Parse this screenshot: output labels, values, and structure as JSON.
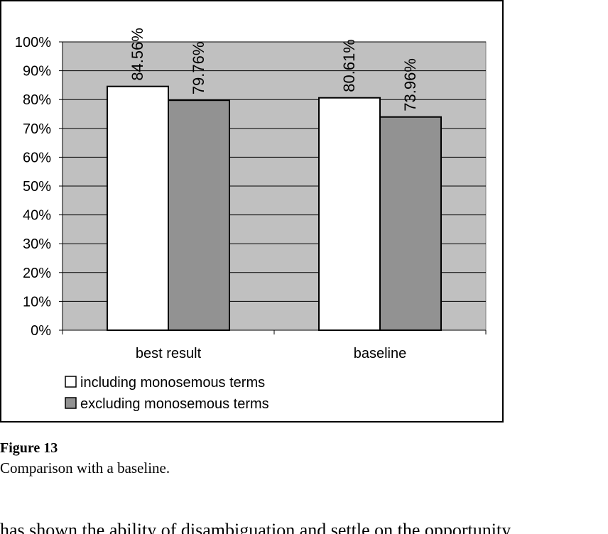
{
  "figure": {
    "label": "Figure 13",
    "caption": "Comparison with a baseline.",
    "body_text_fragment": "has shown the ability of disambiguation and settle on the opportunity"
  },
  "colors": {
    "plot_background": "#c0c0c0",
    "series_including": "#ffffff",
    "series_excluding": "#929292",
    "gridline": "#000000"
  },
  "chart_data": {
    "type": "bar",
    "title": "",
    "xlabel": "",
    "ylabel": "",
    "categories": [
      "best result",
      "baseline"
    ],
    "series": [
      {
        "name": "including monosemous terms",
        "values": [
          84.56,
          80.61
        ],
        "labels": [
          "84.56%",
          "80.61%"
        ]
      },
      {
        "name": "excluding monosemous terms",
        "values": [
          79.76,
          73.96
        ],
        "labels": [
          "79.76%",
          "73.96%"
        ]
      }
    ],
    "ylim": [
      0,
      100
    ],
    "yticks": [
      "0%",
      "10%",
      "20%",
      "30%",
      "40%",
      "50%",
      "60%",
      "70%",
      "80%",
      "90%",
      "100%"
    ],
    "grid": true,
    "legend_position": "bottom-left"
  }
}
